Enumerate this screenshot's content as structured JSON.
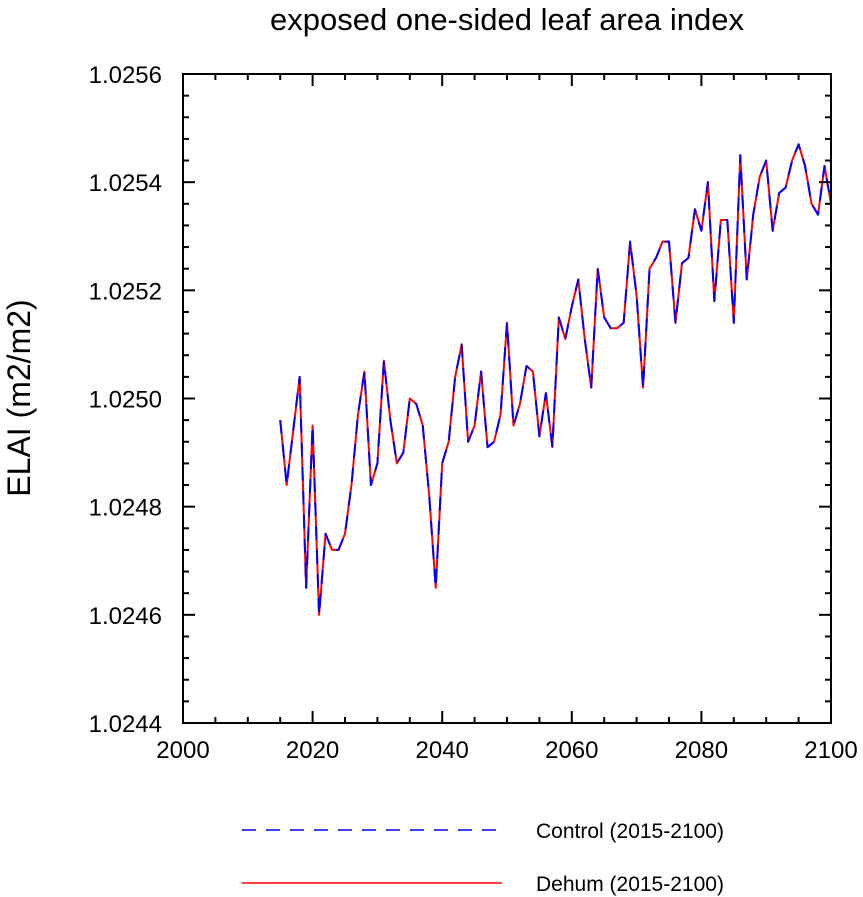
{
  "chart_data": {
    "type": "line",
    "title": "exposed one-sided leaf area index",
    "xlabel": "",
    "ylabel": "ELAI  (m2/m2)",
    "xlim": [
      2000,
      2100
    ],
    "ylim": [
      1.0244,
      1.0256
    ],
    "x_ticks": [
      2000,
      2020,
      2040,
      2060,
      2080,
      2100
    ],
    "x_tick_labels": [
      "2000",
      "2020",
      "2040",
      "2060",
      "2080",
      "2100"
    ],
    "y_ticks": [
      1.0244,
      1.0246,
      1.0248,
      1.025,
      1.0252,
      1.0254,
      1.0256
    ],
    "y_tick_labels": [
      "1.0244",
      "1.0246",
      "1.0248",
      "1.0250",
      "1.0252",
      "1.0254",
      "1.0256"
    ],
    "x": [
      2015,
      2016,
      2017,
      2018,
      2019,
      2020,
      2021,
      2022,
      2023,
      2024,
      2025,
      2026,
      2027,
      2028,
      2029,
      2030,
      2031,
      2032,
      2033,
      2034,
      2035,
      2036,
      2037,
      2038,
      2039,
      2040,
      2041,
      2042,
      2043,
      2044,
      2045,
      2046,
      2047,
      2048,
      2049,
      2050,
      2051,
      2052,
      2053,
      2054,
      2055,
      2056,
      2057,
      2058,
      2059,
      2060,
      2061,
      2062,
      2063,
      2064,
      2065,
      2066,
      2067,
      2068,
      2069,
      2070,
      2071,
      2072,
      2073,
      2074,
      2075,
      2076,
      2077,
      2078,
      2079,
      2080,
      2081,
      2082,
      2083,
      2084,
      2085,
      2086,
      2087,
      2088,
      2089,
      2090,
      2091,
      2092,
      2093,
      2094,
      2095,
      2096,
      2097,
      2098,
      2099,
      2100
    ],
    "series": [
      {
        "name": "Control (2015-2100)",
        "color": "#0000ff",
        "style": "dashed",
        "values": [
          1.02496,
          1.02484,
          1.02494,
          1.02504,
          1.02465,
          1.02495,
          1.0246,
          1.02475,
          1.02472,
          1.02472,
          1.02475,
          1.02484,
          1.02497,
          1.02505,
          1.02484,
          1.02488,
          1.02507,
          1.02496,
          1.02488,
          1.0249,
          1.025,
          1.02499,
          1.02495,
          1.02482,
          1.02465,
          1.02488,
          1.02492,
          1.02504,
          1.0251,
          1.02492,
          1.02495,
          1.02505,
          1.02491,
          1.02492,
          1.02497,
          1.02514,
          1.02495,
          1.02499,
          1.02506,
          1.02505,
          1.02493,
          1.02501,
          1.02491,
          1.02515,
          1.02511,
          1.02517,
          1.02522,
          1.02511,
          1.02502,
          1.02524,
          1.02515,
          1.02513,
          1.02513,
          1.02514,
          1.02529,
          1.02519,
          1.02502,
          1.02524,
          1.02526,
          1.02529,
          1.02529,
          1.02514,
          1.02525,
          1.02526,
          1.02535,
          1.02531,
          1.0254,
          1.02518,
          1.02533,
          1.02533,
          1.02514,
          1.02545,
          1.02522,
          1.02534,
          1.02541,
          1.02544,
          1.02531,
          1.02538,
          1.02539,
          1.02544,
          1.02547,
          1.02543,
          1.02536,
          1.02534,
          1.02543,
          1.02536
        ]
      },
      {
        "name": "Dehum (2015-2100)",
        "color": "#ff0000",
        "style": "solid",
        "values": [
          1.02496,
          1.02484,
          1.02494,
          1.02504,
          1.02465,
          1.02495,
          1.0246,
          1.02475,
          1.02472,
          1.02472,
          1.02475,
          1.02484,
          1.02497,
          1.02505,
          1.02484,
          1.02488,
          1.02507,
          1.02496,
          1.02488,
          1.0249,
          1.025,
          1.02499,
          1.02495,
          1.02482,
          1.02465,
          1.02488,
          1.02492,
          1.02504,
          1.0251,
          1.02492,
          1.02495,
          1.02505,
          1.02491,
          1.02492,
          1.02497,
          1.02514,
          1.02495,
          1.02499,
          1.02506,
          1.02505,
          1.02493,
          1.02501,
          1.02491,
          1.02515,
          1.02511,
          1.02517,
          1.02522,
          1.02511,
          1.02502,
          1.02524,
          1.02515,
          1.02513,
          1.02513,
          1.02514,
          1.02529,
          1.02519,
          1.02502,
          1.02524,
          1.02526,
          1.02529,
          1.02529,
          1.02514,
          1.02525,
          1.02526,
          1.02535,
          1.02531,
          1.0254,
          1.02518,
          1.02533,
          1.02533,
          1.02514,
          1.02545,
          1.02522,
          1.02534,
          1.02541,
          1.02544,
          1.02531,
          1.02538,
          1.02539,
          1.02544,
          1.02547,
          1.02543,
          1.02536,
          1.02534,
          1.02543,
          1.02536
        ]
      }
    ],
    "legend": {
      "placement": "bottom-center",
      "entries": [
        {
          "label": "Control (2015-2100)",
          "color": "#0000ff",
          "style": "dashed"
        },
        {
          "label": "Dehum (2015-2100)",
          "color": "#ff0000",
          "style": "solid"
        }
      ]
    },
    "grid": false
  }
}
